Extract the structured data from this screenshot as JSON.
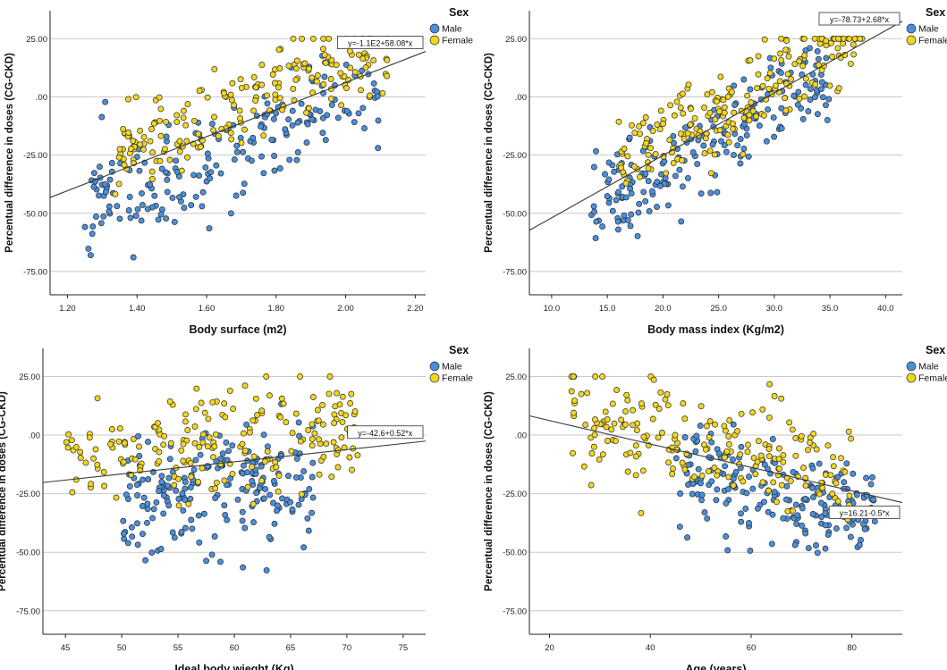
{
  "colors": {
    "male": "#4a8fdc",
    "female": "#f2d51e",
    "marker_stroke": "#2b2b2b",
    "grid": "#c9c9c9",
    "fit_line": "#3a3a3a",
    "axis": "#222222"
  },
  "legend": {
    "title": "Sex",
    "items": [
      {
        "label": "Male",
        "color": "#4a8fdc"
      },
      {
        "label": "Female",
        "color": "#f2d51e"
      }
    ]
  },
  "chart_data": [
    {
      "type": "scatter",
      "id": "body-surface",
      "xlabel": "Body surface (m2)",
      "ylabel": "Percentual difference in doses (CG-CKD)",
      "xlim": [
        1.15,
        2.23
      ],
      "ylim": [
        -85,
        37
      ],
      "xticks": [
        1.2,
        1.4,
        1.6,
        1.8,
        2.0,
        2.2
      ],
      "xtick_labels": [
        "1.20",
        "1.40",
        "1.60",
        "1.80",
        "2.00",
        "2.20"
      ],
      "yticks": [
        25,
        0,
        -25,
        -50,
        -75
      ],
      "ytick_labels": [
        "25.00",
        ".00",
        "-25.00",
        "-50.00",
        "-75.00"
      ],
      "fit": {
        "intercept": -110,
        "slope": 58.08,
        "label": "y=-1.1E2+58.08*x"
      },
      "series": [
        {
          "name": "Male",
          "gen": {
            "seed": 11,
            "n": 200,
            "xmin": 1.25,
            "xmax": 2.1,
            "a": -110,
            "b": 58.08,
            "offset": -10,
            "spread": 28
          }
        },
        {
          "name": "Female",
          "gen": {
            "seed": 23,
            "n": 200,
            "xmin": 1.33,
            "xmax": 2.12,
            "a": -110,
            "b": 58.08,
            "offset": 10,
            "spread": 22
          }
        }
      ]
    },
    {
      "type": "scatter",
      "id": "bmi",
      "xlabel": "Body mass index (Kg/m2)",
      "ylabel": "Percentual difference in doses (CG-CKD)",
      "xlim": [
        8,
        41.5
      ],
      "ylim": [
        -85,
        37
      ],
      "xticks": [
        10,
        15,
        20,
        25,
        30,
        35,
        40
      ],
      "xtick_labels": [
        "10.0",
        "15.0",
        "20.0",
        "25.0",
        "30.0",
        "35.0",
        "40.0"
      ],
      "yticks": [
        25,
        0,
        -25,
        -50,
        -75
      ],
      "ytick_labels": [
        "25.00",
        ".00",
        "-25.00",
        "-50.00",
        "-75.00"
      ],
      "fit": {
        "intercept": -78.73,
        "slope": 2.68,
        "label": "y=-78.73+2.68*x"
      },
      "series": [
        {
          "name": "Male",
          "gen": {
            "seed": 31,
            "n": 200,
            "xmin": 13.5,
            "xmax": 35,
            "a": -78.73,
            "b": 2.68,
            "offset": -6,
            "spread": 24
          }
        },
        {
          "name": "Female",
          "gen": {
            "seed": 47,
            "n": 200,
            "xmin": 16,
            "xmax": 38,
            "a": -78.73,
            "b": 2.68,
            "offset": 6,
            "spread": 22
          }
        }
      ]
    },
    {
      "type": "scatter",
      "id": "ideal-body-weight",
      "xlabel": "Ideal body wieght (Kg)",
      "ylabel": "Percentual difference in doses (CG-CKD)",
      "xlim": [
        43,
        77
      ],
      "ylim": [
        -85,
        37
      ],
      "xticks": [
        45,
        50,
        55,
        60,
        65,
        70,
        75
      ],
      "xtick_labels": [
        "45",
        "50",
        "55",
        "60",
        "65",
        "70",
        "75"
      ],
      "yticks": [
        25,
        0,
        -25,
        -50,
        -75
      ],
      "ytick_labels": [
        "25.00",
        ".00",
        "-25.00",
        "-50.00",
        "-75.00"
      ],
      "fit": {
        "intercept": -42.6,
        "slope": 0.52,
        "label": "y=-42.6+0.52*x"
      },
      "series": [
        {
          "name": "Male",
          "gen": {
            "seed": 53,
            "n": 200,
            "xmin": 50,
            "xmax": 67,
            "a": -42.6,
            "b": 0.52,
            "offset": -12,
            "spread": 30
          }
        },
        {
          "name": "Female",
          "gen": {
            "seed": 61,
            "n": 200,
            "xmin": 45,
            "xmax": 71,
            "a": -42.6,
            "b": 0.52,
            "offset": 10,
            "spread": 28
          }
        }
      ]
    },
    {
      "type": "scatter",
      "id": "age",
      "xlabel": "Age (years)",
      "ylabel": "Percentual difference in doses (CG-CKD)",
      "xlim": [
        16,
        90
      ],
      "ylim": [
        -85,
        37
      ],
      "xticks": [
        20,
        40,
        60,
        80
      ],
      "xtick_labels": [
        "20",
        "40",
        "60",
        "80"
      ],
      "yticks": [
        25,
        0,
        -25,
        -50,
        -75
      ],
      "ytick_labels": [
        "25.00",
        ".00",
        "-25.00",
        "-50.00",
        "-75.00"
      ],
      "fit": {
        "intercept": 16.21,
        "slope": -0.5,
        "label": "y=16.21-0.5*x"
      },
      "series": [
        {
          "name": "Male",
          "gen": {
            "seed": 71,
            "n": 200,
            "xmin": 45,
            "xmax": 85,
            "a": 16.21,
            "b": -0.5,
            "offset": -8,
            "spread": 26
          }
        },
        {
          "name": "Female",
          "gen": {
            "seed": 83,
            "n": 200,
            "xmin": 24,
            "xmax": 80,
            "a": 16.21,
            "b": -0.5,
            "offset": 6,
            "spread": 26
          }
        }
      ]
    }
  ]
}
